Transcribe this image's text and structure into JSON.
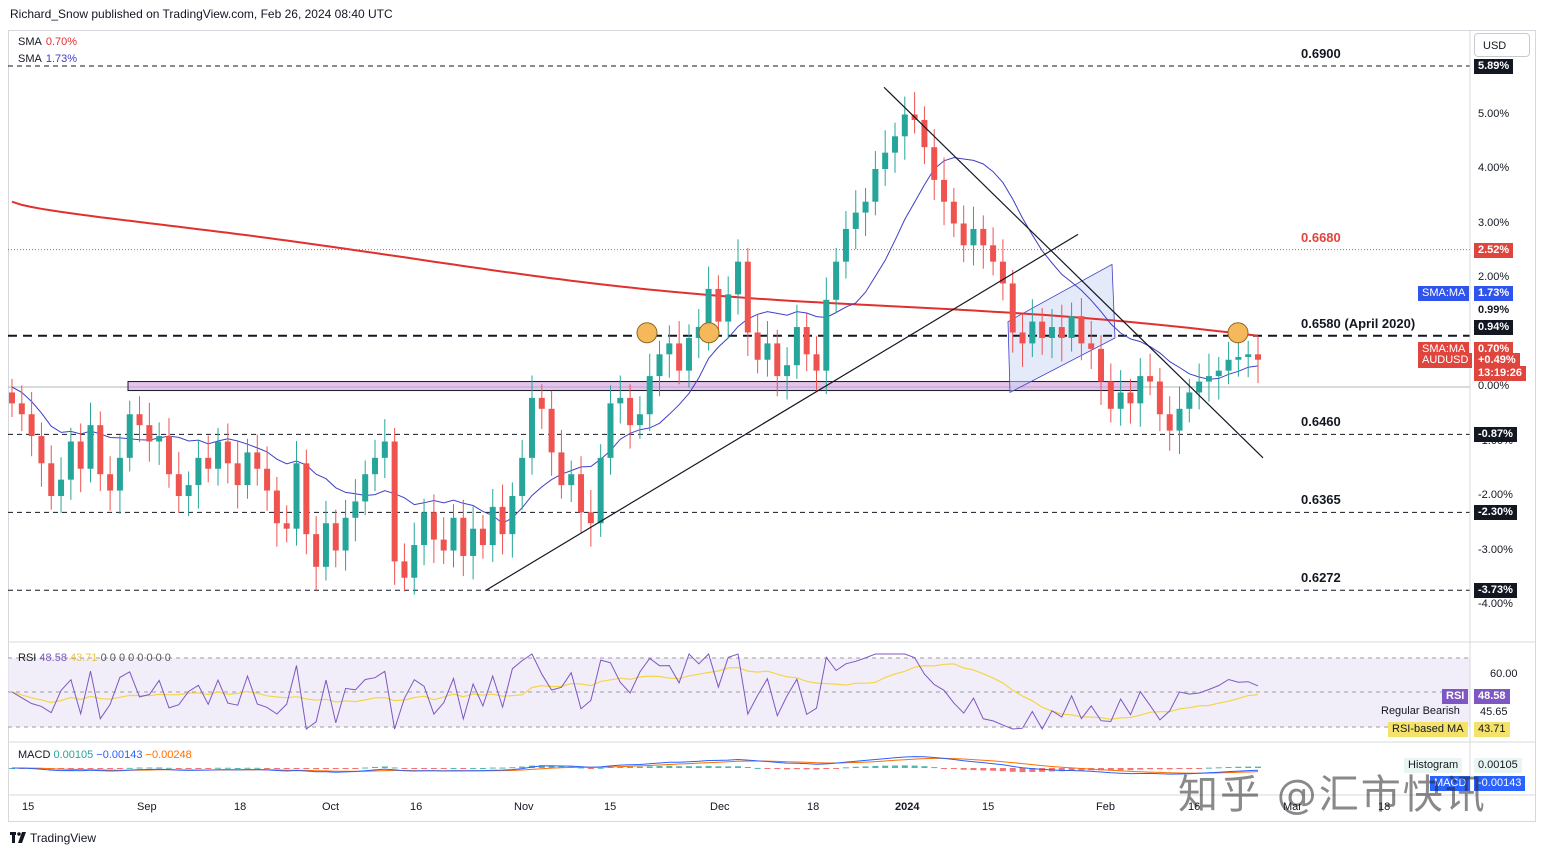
{
  "header": {
    "text": "Richard_Snow published on TradingView.com, Feb 26, 2024 08:40 UTC"
  },
  "currency_button": "USD",
  "sma_legend": [
    {
      "name": "SMA",
      "value": "0.70%"
    },
    {
      "name": "SMA",
      "value": "1.73%"
    }
  ],
  "price_axis": {
    "ticks": [
      "5.00%",
      "4.00%",
      "3.00%",
      "2.00%",
      "1.00%",
      "0.00%",
      "-1.00%",
      "-2.00%",
      "-3.00%",
      "-4.00%"
    ],
    "tags": [
      {
        "text": "5.89%",
        "kind": "black"
      },
      {
        "text": "2.52%",
        "kind": "red"
      },
      {
        "text": "1.73%",
        "kind": "blue",
        "prefix": "SMA:MA"
      },
      {
        "text": "0.99%",
        "kind": "white"
      },
      {
        "text": "0.94%",
        "kind": "black"
      },
      {
        "text": "0.70%",
        "kind": "red",
        "prefix": "SMA:MA"
      },
      {
        "text": "+0.49%",
        "kind": "red",
        "prefix": "AUDUSD"
      },
      {
        "text": "13:19:26",
        "kind": "red"
      },
      {
        "text": "-0.87%",
        "kind": "black"
      },
      {
        "text": "-2.30%",
        "kind": "black"
      },
      {
        "text": "-3.73%",
        "kind": "black"
      }
    ]
  },
  "levels": [
    {
      "label": "0.6900",
      "style": "dashed"
    },
    {
      "label": "0.6680",
      "style": "dotted-red"
    },
    {
      "label": "0.6580 (April 2020)",
      "style": "dashed-bold"
    },
    {
      "label": "0.6460",
      "style": "dashed"
    },
    {
      "label": "0.6365",
      "style": "dashed"
    },
    {
      "label": "0.6272",
      "style": "dashed"
    }
  ],
  "x_axis": {
    "ticks": [
      "15",
      "Sep",
      "18",
      "Oct",
      "16",
      "Nov",
      "15",
      "Dec",
      "18",
      "2024",
      "15",
      "Feb",
      "16",
      "Mar",
      "18"
    ]
  },
  "rsi": {
    "label": "RSI",
    "value": "48.58",
    "ma_value": "43.71",
    "extras": "0 0 0 0 0 0 0 0",
    "axis_tick": "60.00",
    "side": [
      {
        "name": "RSI",
        "value": "48.58"
      },
      {
        "name": "Regular Bearish",
        "value": "45.65"
      },
      {
        "name": "RSI-based MA",
        "value": "43.71"
      }
    ]
  },
  "macd": {
    "label": "MACD",
    "v1": "0.00105",
    "v2": "−0.00143",
    "v3": "−0.00248",
    "side": [
      {
        "name": "Histogram",
        "value": "0.00105"
      },
      {
        "name": "MACD",
        "value": "-0.00143"
      }
    ]
  },
  "footer": {
    "brand": "TradingView"
  },
  "watermark": "知乎 @汇市快讯",
  "colors": {
    "up": "#26a69a",
    "down": "#ef5350",
    "sma200": "#e03030",
    "sma50": "#3f3fc8",
    "rsi": "#7e57c2",
    "rsi_ma": "#f5d547",
    "zone": "#ce93d8",
    "marker": "#f5b85a"
  },
  "chart_data": {
    "type": "candlestick",
    "title": "",
    "symbol": "AUDUSD",
    "pct_range": [
      -4.3,
      6.2
    ],
    "levels_pct": {
      "0.6900": 5.89,
      "0.6680": 2.52,
      "0.6580": 0.94,
      "0.6460": -0.87,
      "0.6365": -2.3,
      "0.6272": -3.73
    },
    "x_labels": [
      "15",
      "Sep",
      "18",
      "Oct",
      "16",
      "Nov",
      "15",
      "Dec",
      "18",
      "2024",
      "15",
      "Feb",
      "16",
      "Mar",
      "18"
    ],
    "close_pct": [
      -0.3,
      -0.5,
      -0.9,
      -1.4,
      -2.0,
      -1.7,
      -1.0,
      -1.5,
      -0.7,
      -1.6,
      -1.9,
      -1.3,
      -0.5,
      -0.7,
      -1.0,
      -0.9,
      -1.6,
      -2.0,
      -1.8,
      -1.3,
      -1.5,
      -1.0,
      -1.4,
      -1.8,
      -1.2,
      -1.5,
      -1.9,
      -2.5,
      -2.6,
      -1.4,
      -2.7,
      -3.3,
      -2.5,
      -3.0,
      -2.4,
      -2.1,
      -1.6,
      -1.3,
      -1.0,
      -3.2,
      -3.5,
      -2.9,
      -2.3,
      -2.8,
      -3.0,
      -2.4,
      -3.1,
      -2.6,
      -2.9,
      -2.2,
      -2.7,
      -2.0,
      -1.3,
      -0.2,
      -0.4,
      -1.2,
      -1.8,
      -1.6,
      -2.3,
      -2.5,
      -1.3,
      -0.3,
      -0.2,
      -0.7,
      -0.5,
      0.2,
      0.6,
      0.8,
      0.3,
      0.9,
      1.1,
      1.8,
      1.2,
      1.7,
      2.3,
      1.0,
      0.5,
      0.8,
      0.2,
      0.4,
      1.1,
      0.6,
      0.3,
      1.6,
      2.3,
      2.9,
      3.2,
      3.4,
      4.0,
      4.3,
      4.6,
      5.0,
      4.9,
      4.4,
      3.8,
      3.4,
      3.0,
      2.6,
      2.9,
      2.6,
      2.3,
      1.9,
      1.0,
      0.8,
      1.2,
      0.9,
      1.1,
      0.9,
      1.3,
      0.8,
      0.7,
      0.1,
      -0.4,
      -0.1,
      -0.3,
      0.2,
      0.1,
      -0.5,
      -0.8,
      -0.4,
      -0.1,
      0.1,
      0.2,
      0.3,
      0.5,
      0.55,
      0.6,
      0.5
    ]
  }
}
